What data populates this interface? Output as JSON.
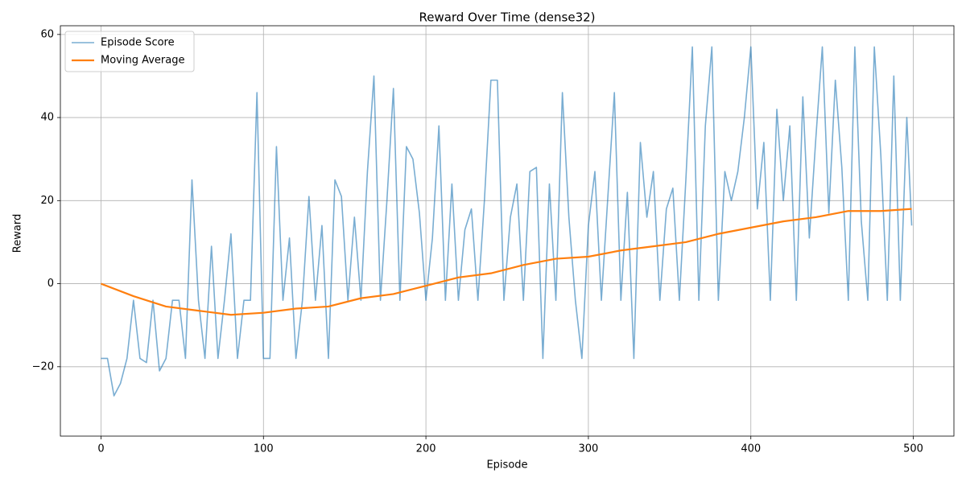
{
  "chart_data": {
    "type": "line",
    "title": "Reward Over Time (dense32)",
    "x_label": "Episode",
    "y_label": "Reward",
    "xlim": [
      -25,
      525
    ],
    "ylim": [
      -36.7,
      62.1
    ],
    "xticks": [
      0,
      100,
      200,
      300,
      400,
      500
    ],
    "yticks": [
      {
        "value": -20,
        "label": "−20"
      },
      0,
      20,
      40,
      60
    ],
    "grid": true,
    "legend": "upper-left",
    "series": [
      {
        "name": "Episode Score",
        "color": "#1f77b4",
        "opacity": 0.6,
        "width": 1.6,
        "x": [
          0,
          4,
          8,
          12,
          16,
          20,
          24,
          28,
          32,
          36,
          40,
          44,
          48,
          52,
          56,
          60,
          64,
          68,
          72,
          76,
          80,
          84,
          88,
          92,
          96,
          100,
          104,
          108,
          112,
          116,
          120,
          124,
          128,
          132,
          136,
          140,
          144,
          148,
          152,
          156,
          160,
          164,
          168,
          172,
          176,
          180,
          184,
          188,
          192,
          196,
          200,
          204,
          208,
          212,
          216,
          220,
          224,
          228,
          232,
          236,
          240,
          244,
          248,
          252,
          256,
          260,
          264,
          268,
          272,
          276,
          280,
          284,
          288,
          292,
          296,
          300,
          304,
          308,
          312,
          316,
          320,
          324,
          328,
          332,
          336,
          340,
          344,
          348,
          352,
          356,
          360,
          364,
          368,
          372,
          376,
          380,
          384,
          388,
          392,
          396,
          400,
          404,
          408,
          412,
          416,
          420,
          424,
          428,
          432,
          436,
          440,
          444,
          448,
          452,
          456,
          460,
          464,
          468,
          472,
          476,
          480,
          484,
          488,
          492,
          496,
          499
        ],
        "values": [
          -18,
          -18,
          -27,
          -24,
          -18,
          -4,
          -18,
          -19,
          -4,
          -21,
          -18,
          -4,
          -4,
          -18,
          25,
          -4,
          -18,
          9,
          -18,
          -4,
          12,
          -18,
          -4,
          -4,
          46,
          -18,
          -18,
          33,
          -4,
          11,
          -18,
          -4,
          21,
          -4,
          14,
          -18,
          25,
          21,
          -4,
          16,
          -4,
          27,
          50,
          -4,
          20,
          47,
          -4,
          33,
          30,
          17,
          -4,
          11,
          38,
          -4,
          24,
          -4,
          13,
          18,
          -4,
          20,
          49,
          49,
          -4,
          16,
          24,
          -4,
          27,
          28,
          -18,
          24,
          -4,
          46,
          16,
          -4,
          -18,
          14,
          27,
          -4,
          21,
          46,
          -4,
          22,
          -18,
          34,
          16,
          27,
          -4,
          18,
          23,
          -4,
          25,
          57,
          -4,
          38,
          57,
          -4,
          27,
          20,
          27,
          40,
          57,
          18,
          34,
          -4,
          42,
          20,
          38,
          -4,
          45,
          11,
          35,
          57,
          17,
          49,
          28,
          -4,
          57,
          15,
          -4,
          57,
          31,
          -4,
          50,
          -4,
          40,
          14
        ]
      },
      {
        "name": "Moving Average",
        "color": "#ff7f0e",
        "opacity": 1,
        "width": 2.2,
        "x": [
          0,
          20,
          40,
          60,
          80,
          100,
          120,
          140,
          160,
          180,
          200,
          220,
          240,
          260,
          280,
          300,
          320,
          340,
          360,
          380,
          400,
          420,
          440,
          460,
          480,
          499
        ],
        "values": [
          0,
          -3,
          -5.5,
          -6.5,
          -7.5,
          -7,
          -6,
          -5.5,
          -3.5,
          -2.5,
          -0.5,
          1.5,
          2.5,
          4.5,
          6,
          6.5,
          8,
          9,
          10,
          12,
          13.5,
          15,
          16,
          17.5,
          17.5,
          18
        ]
      }
    ]
  }
}
